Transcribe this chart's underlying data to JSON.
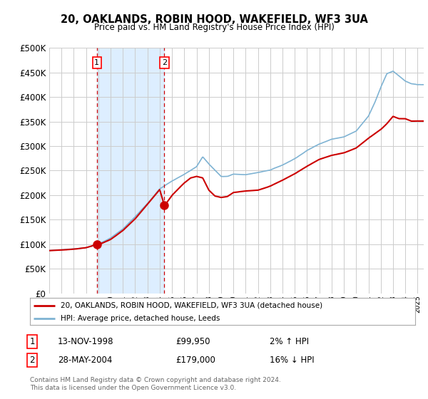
{
  "title": "20, OAKLANDS, ROBIN HOOD, WAKEFIELD, WF3 3UA",
  "subtitle": "Price paid vs. HM Land Registry's House Price Index (HPI)",
  "ytick_values": [
    0,
    50000,
    100000,
    150000,
    200000,
    250000,
    300000,
    350000,
    400000,
    450000,
    500000
  ],
  "ylim": [
    0,
    500000
  ],
  "xlim_start": 1995.0,
  "xlim_end": 2025.5,
  "transaction1_date": 1998.88,
  "transaction1_price": 99950,
  "transaction2_date": 2004.38,
  "transaction2_price": 179000,
  "legend_line1": "20, OAKLANDS, ROBIN HOOD, WAKEFIELD, WF3 3UA (detached house)",
  "legend_line2": "HPI: Average price, detached house, Leeds",
  "table_row1_num": "1",
  "table_row1_date": "13-NOV-1998",
  "table_row1_price": "£99,950",
  "table_row1_hpi": "2% ↑ HPI",
  "table_row2_num": "2",
  "table_row2_date": "28-MAY-2004",
  "table_row2_price": "£179,000",
  "table_row2_hpi": "16% ↓ HPI",
  "footer": "Contains HM Land Registry data © Crown copyright and database right 2024.\nThis data is licensed under the Open Government Licence v3.0.",
  "red_color": "#cc0000",
  "blue_color": "#7fb3d3",
  "shade_color": "#ddeeff",
  "grid_color": "#cccccc",
  "bg_color": "#ffffff",
  "hpi_knots": [
    1995,
    1996,
    1997,
    1998,
    1999,
    2000,
    2001,
    2002,
    2003,
    2004,
    2005,
    2006,
    2007,
    2007.5,
    2008,
    2009,
    2009.5,
    2010,
    2011,
    2012,
    2013,
    2014,
    2015,
    2016,
    2017,
    2018,
    2019,
    2020,
    2021,
    2021.5,
    2022,
    2022.5,
    2023,
    2023.5,
    2024,
    2024.5,
    2025
  ],
  "hpi_vals": [
    87000,
    88000,
    90000,
    93000,
    100000,
    112000,
    130000,
    155000,
    182000,
    212000,
    228000,
    242000,
    258000,
    278000,
    263000,
    238000,
    238000,
    243000,
    242000,
    247000,
    252000,
    262000,
    275000,
    292000,
    305000,
    315000,
    320000,
    332000,
    363000,
    390000,
    422000,
    450000,
    455000,
    445000,
    435000,
    430000,
    428000
  ],
  "prop_knots": [
    1995,
    1996,
    1997,
    1998,
    1998.88,
    1999,
    2000,
    2001,
    2002,
    2003,
    2004,
    2004.38,
    2005,
    2005.5,
    2006,
    2006.5,
    2007,
    2007.5,
    2008,
    2008.5,
    2009,
    2009.5,
    2010,
    2011,
    2012,
    2013,
    2014,
    2015,
    2016,
    2017,
    2018,
    2019,
    2020,
    2021,
    2022,
    2022.5,
    2023,
    2023.5,
    2024,
    2024.5,
    2025
  ],
  "prop_vals": [
    87000,
    88000,
    90000,
    93000,
    99950,
    99000,
    110000,
    128000,
    152000,
    182000,
    212000,
    179000,
    200000,
    213000,
    225000,
    235000,
    238000,
    235000,
    210000,
    198000,
    195000,
    197000,
    205000,
    208000,
    210000,
    218000,
    230000,
    243000,
    258000,
    272000,
    280000,
    285000,
    295000,
    315000,
    333000,
    345000,
    360000,
    355000,
    355000,
    350000,
    350000
  ]
}
